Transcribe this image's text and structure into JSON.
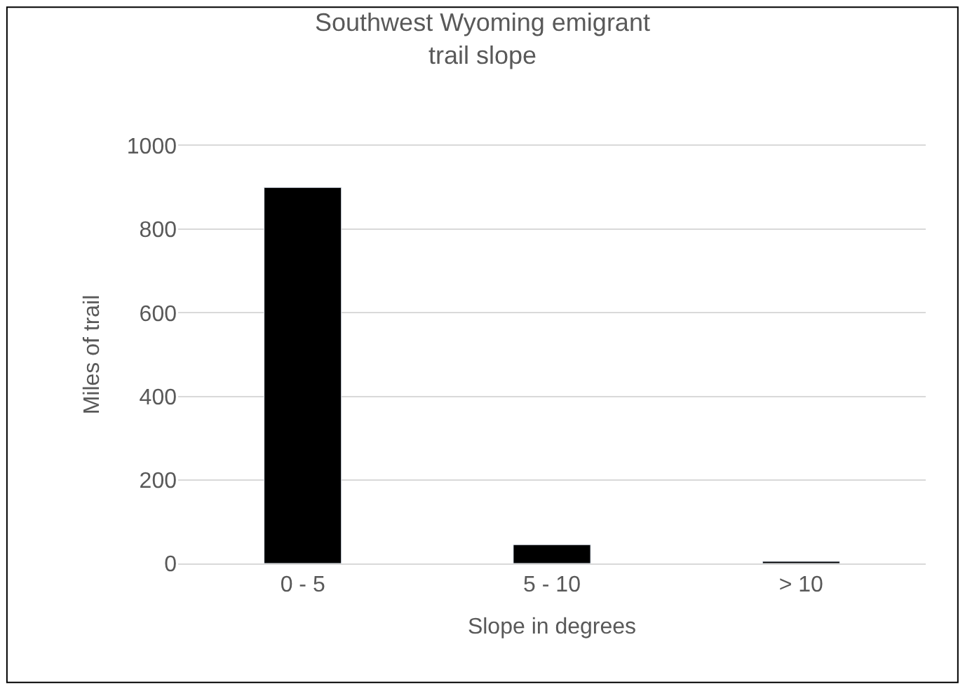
{
  "chart_data": {
    "type": "bar",
    "title": "Southwest Wyoming emigrant trail slope",
    "xlabel": "Slope in degrees",
    "ylabel": "Miles of trail",
    "categories": [
      "0 - 5",
      "5 - 10",
      "> 10"
    ],
    "values": [
      900,
      45,
      5
    ],
    "color": "#000000",
    "ylim": [
      0,
      1000
    ],
    "yticks": [
      0,
      200,
      400,
      600,
      800,
      1000
    ],
    "grid": "y"
  }
}
